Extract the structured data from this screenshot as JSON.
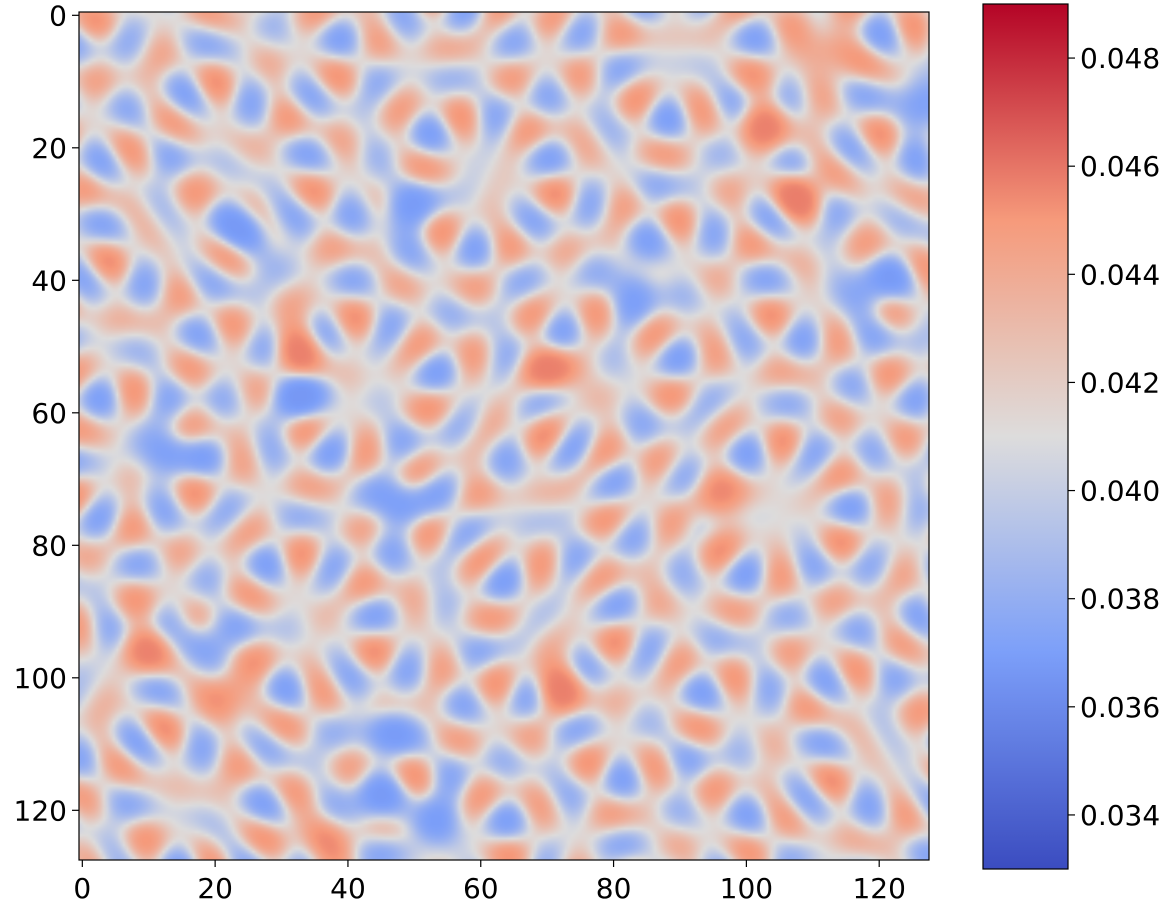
{
  "chart_data": {
    "type": "heatmap",
    "title": "",
    "xlabel": "",
    "ylabel": "",
    "grid_size": [
      128,
      128
    ],
    "xlim": [
      0,
      127
    ],
    "ylim": [
      127,
      0
    ],
    "x_ticks": [
      0,
      20,
      40,
      60,
      80,
      100,
      120
    ],
    "y_ticks": [
      0,
      20,
      40,
      60,
      80,
      100,
      120
    ],
    "x_tick_labels": [
      "0",
      "20",
      "40",
      "60",
      "80",
      "100",
      "120"
    ],
    "y_tick_labels": [
      "0",
      "20",
      "40",
      "60",
      "80",
      "100",
      "120"
    ],
    "colormap": "coolwarm",
    "colorbar": {
      "min": 0.033,
      "max": 0.049,
      "ticks": [
        0.034,
        0.036,
        0.038,
        0.04,
        0.042,
        0.044,
        0.046,
        0.048
      ],
      "tick_labels": [
        "0.034",
        "0.036",
        "0.038",
        "0.040",
        "0.042",
        "0.044",
        "0.046",
        "0.048"
      ],
      "position": "right"
    },
    "grid": false,
    "pattern": "Turing-like spot pattern: blue spots (low, ~0.034-0.038) separated by red ridges (high, ~0.044-0.048), background ~0.041",
    "hotspots": [
      {
        "x": 103,
        "y": 16,
        "value": 0.048
      },
      {
        "x": 71,
        "y": 54,
        "value": 0.047
      },
      {
        "x": 72,
        "y": 101,
        "value": 0.048
      },
      {
        "x": 37,
        "y": 124,
        "value": 0.048
      },
      {
        "x": 22,
        "y": 102,
        "value": 0.047
      },
      {
        "x": 33,
        "y": 50,
        "value": 0.047
      },
      {
        "x": 96,
        "y": 75,
        "value": 0.046
      },
      {
        "x": 108,
        "y": 27,
        "value": 0.046
      },
      {
        "x": 112,
        "y": 5,
        "value": 0.046
      },
      {
        "x": 11,
        "y": 95,
        "value": 0.046
      }
    ],
    "coldspots": [
      {
        "x": 119,
        "y": 42,
        "value": 0.034
      },
      {
        "x": 18,
        "y": 95,
        "value": 0.034
      },
      {
        "x": 43,
        "y": 120,
        "value": 0.034
      },
      {
        "x": 48,
        "y": 30,
        "value": 0.035
      },
      {
        "x": 48,
        "y": 74,
        "value": 0.035
      },
      {
        "x": 33,
        "y": 58,
        "value": 0.035
      },
      {
        "x": 13,
        "y": 66,
        "value": 0.035
      },
      {
        "x": 46,
        "y": 108,
        "value": 0.035
      },
      {
        "x": 53,
        "y": 122,
        "value": 0.035
      },
      {
        "x": 26,
        "y": 33,
        "value": 0.035
      },
      {
        "x": 84,
        "y": 40,
        "value": 0.035
      },
      {
        "x": 127,
        "y": 14,
        "value": 0.035
      }
    ]
  }
}
